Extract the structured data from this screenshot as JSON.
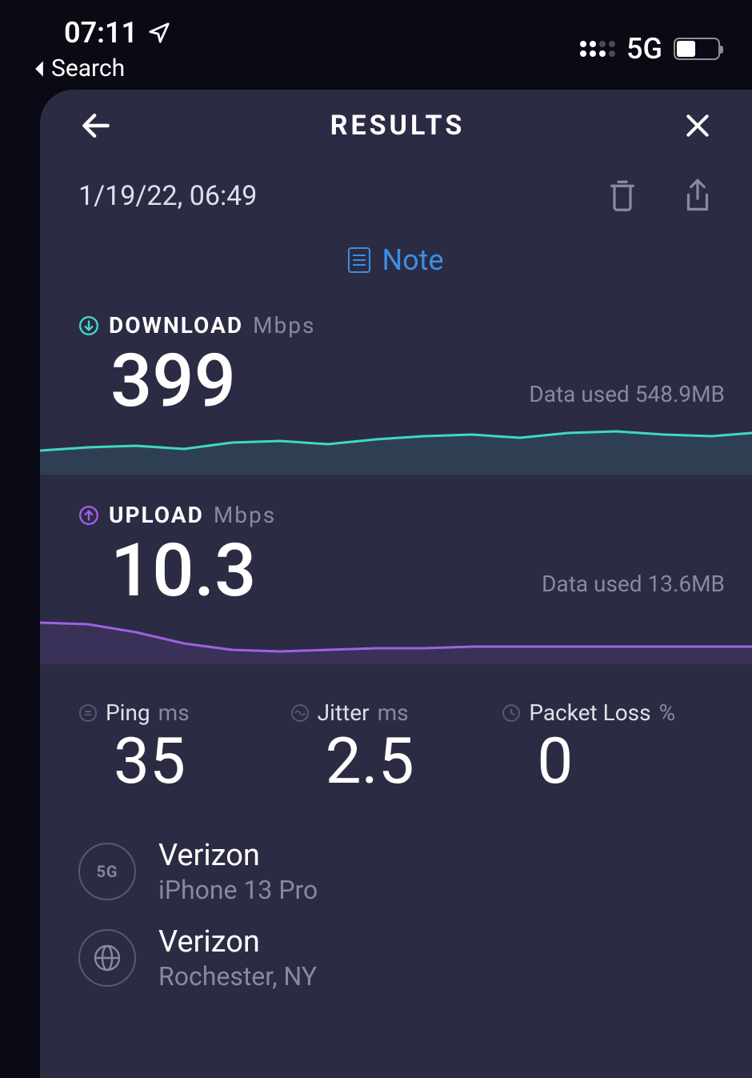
{
  "status": {
    "time": "07:11",
    "back_label": "Search",
    "network": "5G",
    "battery_pct": 45
  },
  "header": {
    "title": "RESULTS"
  },
  "meta": {
    "timestamp": "1/19/22, 06:49",
    "note_label": "Note"
  },
  "download": {
    "label": "DOWNLOAD",
    "unit": "Mbps",
    "value": "399",
    "data_used_label": "Data used",
    "data_used_value": "548.9MB",
    "color": "#3fd9c4",
    "chart_points": [
      [
        0,
        40
      ],
      [
        60,
        36
      ],
      [
        120,
        34
      ],
      [
        180,
        38
      ],
      [
        240,
        30
      ],
      [
        300,
        28
      ],
      [
        360,
        32
      ],
      [
        420,
        26
      ],
      [
        480,
        22
      ],
      [
        540,
        20
      ],
      [
        600,
        24
      ],
      [
        660,
        18
      ],
      [
        720,
        16
      ],
      [
        780,
        20
      ],
      [
        840,
        22
      ],
      [
        890,
        18
      ]
    ]
  },
  "upload": {
    "label": "UPLOAD",
    "unit": "Mbps",
    "value": "10.3",
    "data_used_label": "Data used",
    "data_used_value": "13.6MB",
    "color": "#a060e8",
    "chart_points": [
      [
        0,
        18
      ],
      [
        60,
        20
      ],
      [
        120,
        30
      ],
      [
        180,
        44
      ],
      [
        240,
        52
      ],
      [
        300,
        54
      ],
      [
        360,
        52
      ],
      [
        420,
        50
      ],
      [
        480,
        50
      ],
      [
        540,
        48
      ],
      [
        600,
        48
      ],
      [
        660,
        48
      ],
      [
        720,
        48
      ],
      [
        780,
        48
      ],
      [
        840,
        48
      ],
      [
        890,
        48
      ]
    ]
  },
  "stats": {
    "ping": {
      "label": "Ping",
      "unit": "ms",
      "value": "35"
    },
    "jitter": {
      "label": "Jitter",
      "unit": "ms",
      "value": "2.5"
    },
    "packet_loss": {
      "label": "Packet Loss",
      "unit": "%",
      "value": "0"
    }
  },
  "info": {
    "connection": {
      "badge": "5G",
      "primary": "Verizon",
      "secondary": "iPhone 13 Pro"
    },
    "server": {
      "primary": "Verizon",
      "secondary": "Rochester, NY"
    }
  },
  "colors": {
    "panel_bg": "#2c2b44",
    "muted": "#8a889e",
    "accent_blue": "#3a8fe0"
  }
}
